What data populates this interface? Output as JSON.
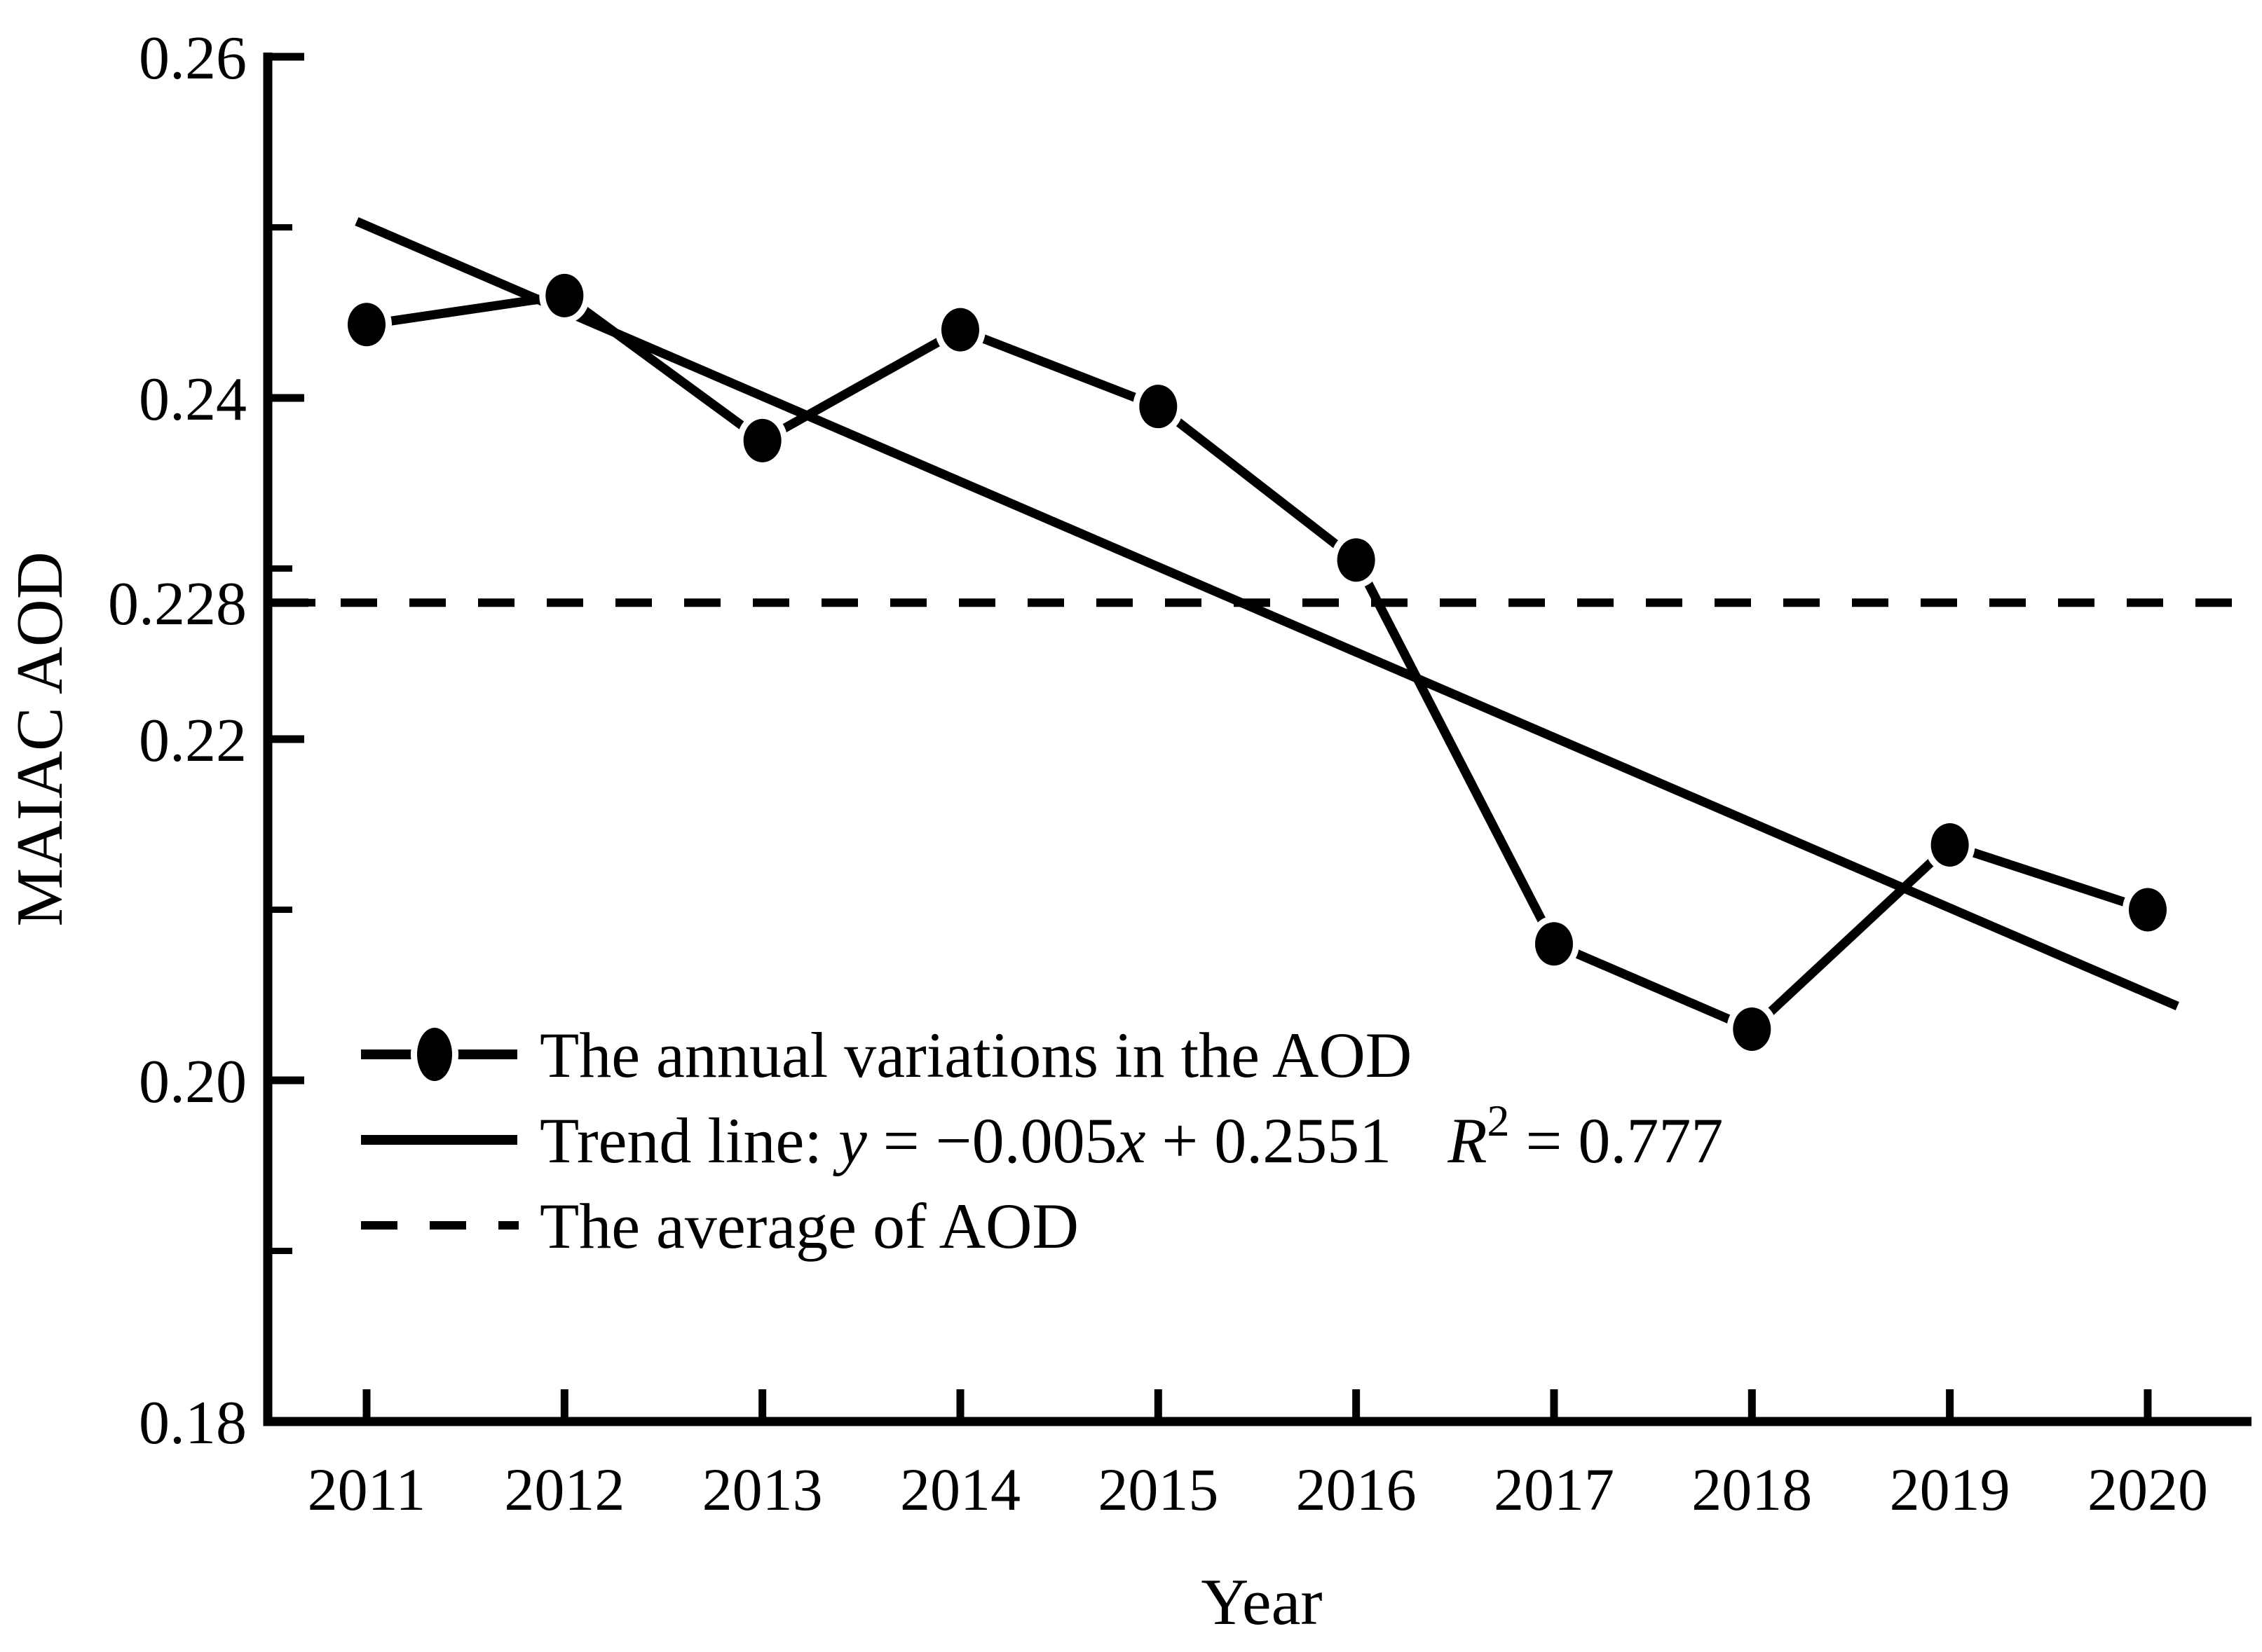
{
  "figure": {
    "background_color": "#ffffff",
    "ink_color": "#000000"
  },
  "y_axis": {
    "title": "MAIAC AOD",
    "range": [
      0.18,
      0.26
    ],
    "major_ticks": [
      {
        "label": "0.26",
        "value": 0.26
      },
      {
        "label": "0.24",
        "value": 0.24
      },
      {
        "label": "0.22",
        "value": 0.22
      },
      {
        "label": "0.20",
        "value": 0.2
      },
      {
        "label": "0.18",
        "value": 0.18
      }
    ],
    "minor_tick_values": [
      0.25,
      0.23,
      0.21,
      0.19
    ],
    "special_tick": {
      "label": "0.228",
      "value": 0.228
    }
  },
  "x_axis": {
    "title": "Year",
    "tick_labels": [
      "2011",
      "2012",
      "2013",
      "2014",
      "2015",
      "2016",
      "2017",
      "2018",
      "2019",
      "2020"
    ]
  },
  "legend": {
    "items": [
      {
        "marker": "line-with-dot",
        "label": "The annual variations in the AOD"
      },
      {
        "marker": "solid-line",
        "label_segments": [
          {
            "t": "Trend line: "
          },
          {
            "t": "y",
            "italic": true
          },
          {
            "t": " = −0.005"
          },
          {
            "t": "x",
            "italic": true
          },
          {
            "t": " + 0.2551"
          },
          {
            "t": "R",
            "italic": true,
            "gap": true
          },
          {
            "t": "2",
            "sup": true
          },
          {
            "t": " = 0.777"
          }
        ]
      },
      {
        "marker": "dashed-line",
        "label": "The average of AOD"
      }
    ]
  },
  "chart_data": {
    "type": "line",
    "xlabel": "Year",
    "ylabel": "MAIAC AOD",
    "ylim": [
      0.18,
      0.26
    ],
    "x": [
      2011,
      2012,
      2013,
      2014,
      2015,
      2016,
      2017,
      2018,
      2019,
      2020
    ],
    "series": [
      {
        "name": "The annual variations in the AOD",
        "style": "solid-line-with-filled-circles",
        "values": [
          0.2443,
          0.246,
          0.2375,
          0.244,
          0.2395,
          0.2305,
          0.208,
          0.203,
          0.2138,
          0.21
        ]
      },
      {
        "name": "Trend line",
        "style": "solid-line",
        "equation": "y = −0.005x + 0.2551",
        "slope": -0.005,
        "intercept": 0.2551,
        "r_squared": 0.777
      },
      {
        "name": "The average of AOD",
        "style": "dashed-line",
        "value": 0.228
      }
    ],
    "legend_position": "lower-left-inside",
    "grid": false
  }
}
